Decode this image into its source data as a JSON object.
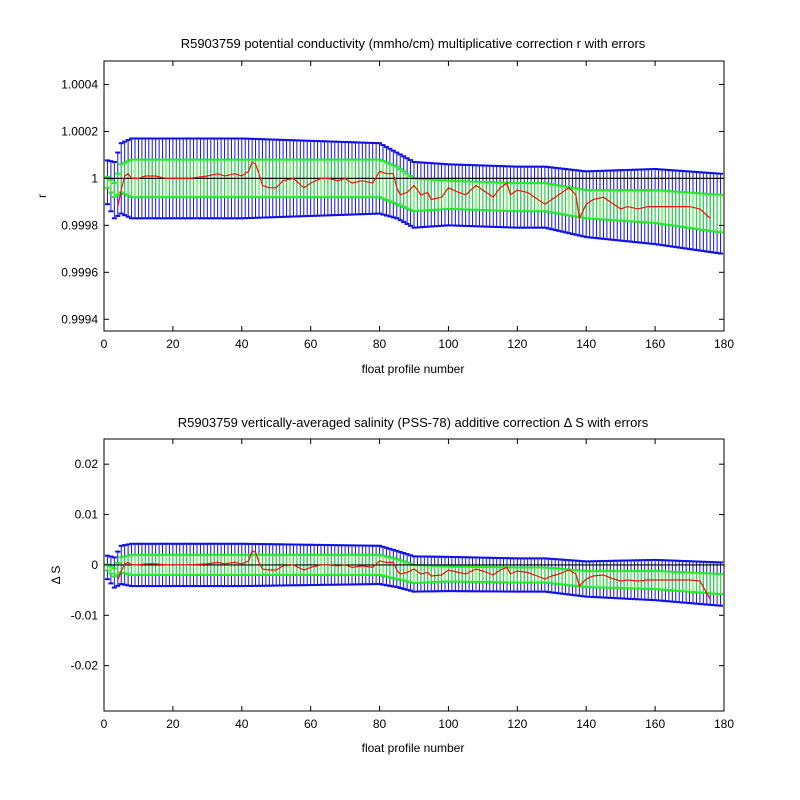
{
  "chart_data": [
    {
      "type": "line",
      "title": "R5903759 potential conductivity (mmho/cm) multiplicative correction r with errors",
      "xlabel": "float profile number",
      "ylabel": "r",
      "xlim": [
        0,
        180
      ],
      "ylim": [
        0.99935,
        1.0005
      ],
      "xticks": [
        0,
        20,
        40,
        60,
        80,
        100,
        120,
        140,
        160,
        180
      ],
      "xtick_labels": [
        "0",
        "20",
        "40",
        "60",
        "80",
        "100",
        "120",
        "140",
        "160",
        "180"
      ],
      "yticks": [
        0.9994,
        0.9996,
        0.9998,
        1.0,
        1.0002,
        1.0004
      ],
      "ytick_labels": [
        "0.9994",
        "0.9996",
        "0.9998",
        "1",
        "1.0002",
        "1.0004"
      ],
      "grid": false,
      "colors": {
        "outer_error": "#1010e8",
        "inner_error": "#22ee22",
        "mapped": "#ff0000",
        "smoothed": "#d03030",
        "reference": "#000000"
      },
      "reference_line": 1.0,
      "fit": {
        "x": [
          0,
          3,
          5,
          8,
          20,
          40,
          60,
          80,
          85,
          90,
          100,
          120,
          128,
          140,
          160,
          179
        ],
        "y": [
          1.0,
          0.99995,
          1.0,
          1.0,
          1.0,
          1.0,
          1.0,
          1.0,
          0.99997,
          0.99993,
          0.99993,
          0.99992,
          0.99992,
          0.99989,
          0.99988,
          0.99985
        ]
      },
      "inner_error_half": {
        "x": [
          0,
          3,
          5,
          8,
          20,
          40,
          60,
          80,
          85,
          90,
          100,
          120,
          128,
          140,
          160,
          179
        ],
        "y": [
          2e-05,
          3e-05,
          6e-05,
          8e-05,
          8e-05,
          8e-05,
          8e-05,
          8e-05,
          8e-05,
          7e-05,
          6e-05,
          6e-05,
          6e-05,
          6e-05,
          7e-05,
          8e-05
        ]
      },
      "outer_error_half": {
        "x": [
          0,
          3,
          5,
          8,
          20,
          40,
          60,
          80,
          85,
          90,
          100,
          120,
          128,
          140,
          160,
          179
        ],
        "y": [
          8e-05,
          0.00012,
          0.00015,
          0.00017,
          0.00017,
          0.00017,
          0.00016,
          0.00015,
          0.00014,
          0.00014,
          0.00013,
          0.00013,
          0.00013,
          0.00014,
          0.00016,
          0.00017
        ]
      },
      "series": [
        {
          "x": [
            4,
            5,
            6,
            7,
            8,
            10,
            12,
            15,
            18,
            20,
            25,
            30,
            33,
            35,
            38,
            40,
            42,
            43,
            44,
            45,
            46,
            48,
            50,
            52,
            55,
            58,
            60,
            63,
            65,
            68,
            70,
            72,
            75,
            78,
            80,
            82,
            84,
            85,
            86,
            88,
            90,
            92,
            94,
            95,
            98,
            100,
            103,
            105,
            108,
            110,
            113,
            115,
            117,
            118,
            120,
            123,
            125,
            128,
            130,
            132,
            135,
            137,
            138,
            139,
            140,
            142,
            145,
            148,
            150,
            152,
            155,
            158,
            160,
            163,
            165,
            168,
            170,
            173,
            176
          ],
          "y": [
            0.99988,
            0.99995,
            1.00001,
            1.00002,
            1.0,
            1.0,
            1.00001,
            1.00001,
            1.0,
            1.0,
            1.0,
            1.00001,
            1.00002,
            1.00001,
            1.00002,
            1.00001,
            1.00003,
            1.00007,
            1.00006,
            1.00002,
            0.99997,
            0.99996,
            0.99996,
            0.99999,
            1.0,
            0.99996,
            0.99998,
            1.0,
            1.0,
            0.99999,
            1.0,
            0.99998,
            0.99999,
            0.99998,
            1.00003,
            1.00002,
            1.00002,
            0.99996,
            0.99993,
            0.99994,
            0.99997,
            0.99993,
            0.99994,
            0.99991,
            0.99992,
            0.99996,
            0.99994,
            0.99993,
            0.99997,
            0.99995,
            0.99992,
            0.99996,
            0.99998,
            0.99993,
            0.99995,
            0.99994,
            0.99992,
            0.99989,
            0.99991,
            0.99993,
            0.99996,
            0.99993,
            0.99983,
            0.99986,
            0.99989,
            0.99991,
            0.99992,
            0.99989,
            0.99987,
            0.99988,
            0.99987,
            0.99988,
            0.99988,
            0.99988,
            0.99988,
            0.99988,
            0.99988,
            0.99987,
            0.99983
          ]
        }
      ]
    },
    {
      "type": "line",
      "title": "R5903759 vertically-averaged salinity (PSS-78) additive correction Δ S with errors",
      "xlabel": "float profile number",
      "ylabel": "Δ S",
      "xlim": [
        0,
        180
      ],
      "ylim": [
        -0.029,
        0.025
      ],
      "xticks": [
        0,
        20,
        40,
        60,
        80,
        100,
        120,
        140,
        160,
        180
      ],
      "xtick_labels": [
        "0",
        "20",
        "40",
        "60",
        "80",
        "100",
        "120",
        "140",
        "160",
        "180"
      ],
      "yticks": [
        -0.02,
        -0.01,
        0,
        0.01,
        0.02
      ],
      "ytick_labels": [
        "-0.02",
        "-0.01",
        "0",
        "0.01",
        "0.02"
      ],
      "grid": false,
      "colors": {
        "outer_error": "#1010e8",
        "inner_error": "#22ee22",
        "mapped": "#ff0000",
        "smoothed": "#d03030",
        "reference": "#000000"
      },
      "reference_line": 0,
      "fit": {
        "x": [
          0,
          3,
          5,
          8,
          20,
          40,
          60,
          80,
          85,
          90,
          100,
          120,
          128,
          140,
          160,
          179
        ],
        "y": [
          0.0,
          -0.0015,
          0.0,
          0.0,
          0.0,
          0.0,
          0.0,
          0.0,
          -0.0008,
          -0.0018,
          -0.0018,
          -0.002,
          -0.002,
          -0.0028,
          -0.003,
          -0.0038
        ]
      },
      "inner_error_half": {
        "x": [
          0,
          3,
          5,
          8,
          20,
          40,
          60,
          80,
          85,
          90,
          100,
          120,
          128,
          140,
          160,
          179
        ],
        "y": [
          0.0005,
          0.0008,
          0.0015,
          0.002,
          0.002,
          0.002,
          0.002,
          0.002,
          0.002,
          0.0018,
          0.0015,
          0.0015,
          0.0015,
          0.0016,
          0.0018,
          0.002
        ]
      },
      "outer_error_half": {
        "x": [
          0,
          3,
          5,
          8,
          20,
          40,
          60,
          80,
          85,
          90,
          100,
          120,
          128,
          140,
          160,
          179
        ],
        "y": [
          0.002,
          0.003,
          0.0038,
          0.0042,
          0.0042,
          0.0042,
          0.004,
          0.0038,
          0.0036,
          0.0035,
          0.0034,
          0.0033,
          0.0033,
          0.0035,
          0.004,
          0.0043
        ]
      },
      "series": [
        {
          "x": [
            4,
            5,
            6,
            7,
            8,
            10,
            12,
            15,
            18,
            20,
            25,
            30,
            33,
            35,
            38,
            40,
            42,
            43,
            44,
            45,
            46,
            48,
            50,
            52,
            55,
            58,
            60,
            63,
            65,
            68,
            70,
            72,
            75,
            78,
            80,
            82,
            84,
            85,
            86,
            88,
            90,
            92,
            94,
            95,
            98,
            100,
            103,
            105,
            108,
            110,
            113,
            115,
            117,
            118,
            120,
            123,
            125,
            128,
            130,
            132,
            135,
            137,
            138,
            139,
            140,
            142,
            145,
            148,
            150,
            152,
            155,
            158,
            160,
            163,
            165,
            168,
            170,
            173,
            176
          ],
          "y": [
            -0.003,
            -0.0012,
            0.0002,
            0.0005,
            0.0,
            0.0,
            0.0002,
            0.0002,
            0.0,
            0.0,
            0.0,
            0.0002,
            0.0005,
            0.0002,
            0.0005,
            0.0002,
            0.0008,
            0.0028,
            0.0025,
            0.0005,
            -0.0008,
            -0.001,
            -0.001,
            -0.0002,
            0.0,
            -0.001,
            -0.0005,
            0.0,
            0.0,
            -0.0002,
            0.0,
            -0.0005,
            -0.0002,
            -0.0005,
            0.0008,
            0.0005,
            0.0005,
            -0.001,
            -0.0018,
            -0.0015,
            -0.0008,
            -0.0018,
            -0.0015,
            -0.0022,
            -0.002,
            -0.001,
            -0.0015,
            -0.0018,
            -0.0008,
            -0.0012,
            -0.002,
            -0.001,
            -0.0005,
            -0.0018,
            -0.0012,
            -0.0015,
            -0.002,
            -0.0028,
            -0.0022,
            -0.0018,
            -0.001,
            -0.0018,
            -0.0042,
            -0.0035,
            -0.0028,
            -0.0022,
            -0.002,
            -0.0028,
            -0.0032,
            -0.003,
            -0.0032,
            -0.003,
            -0.003,
            -0.003,
            -0.003,
            -0.003,
            -0.003,
            -0.0032,
            -0.0068
          ]
        }
      ]
    }
  ]
}
